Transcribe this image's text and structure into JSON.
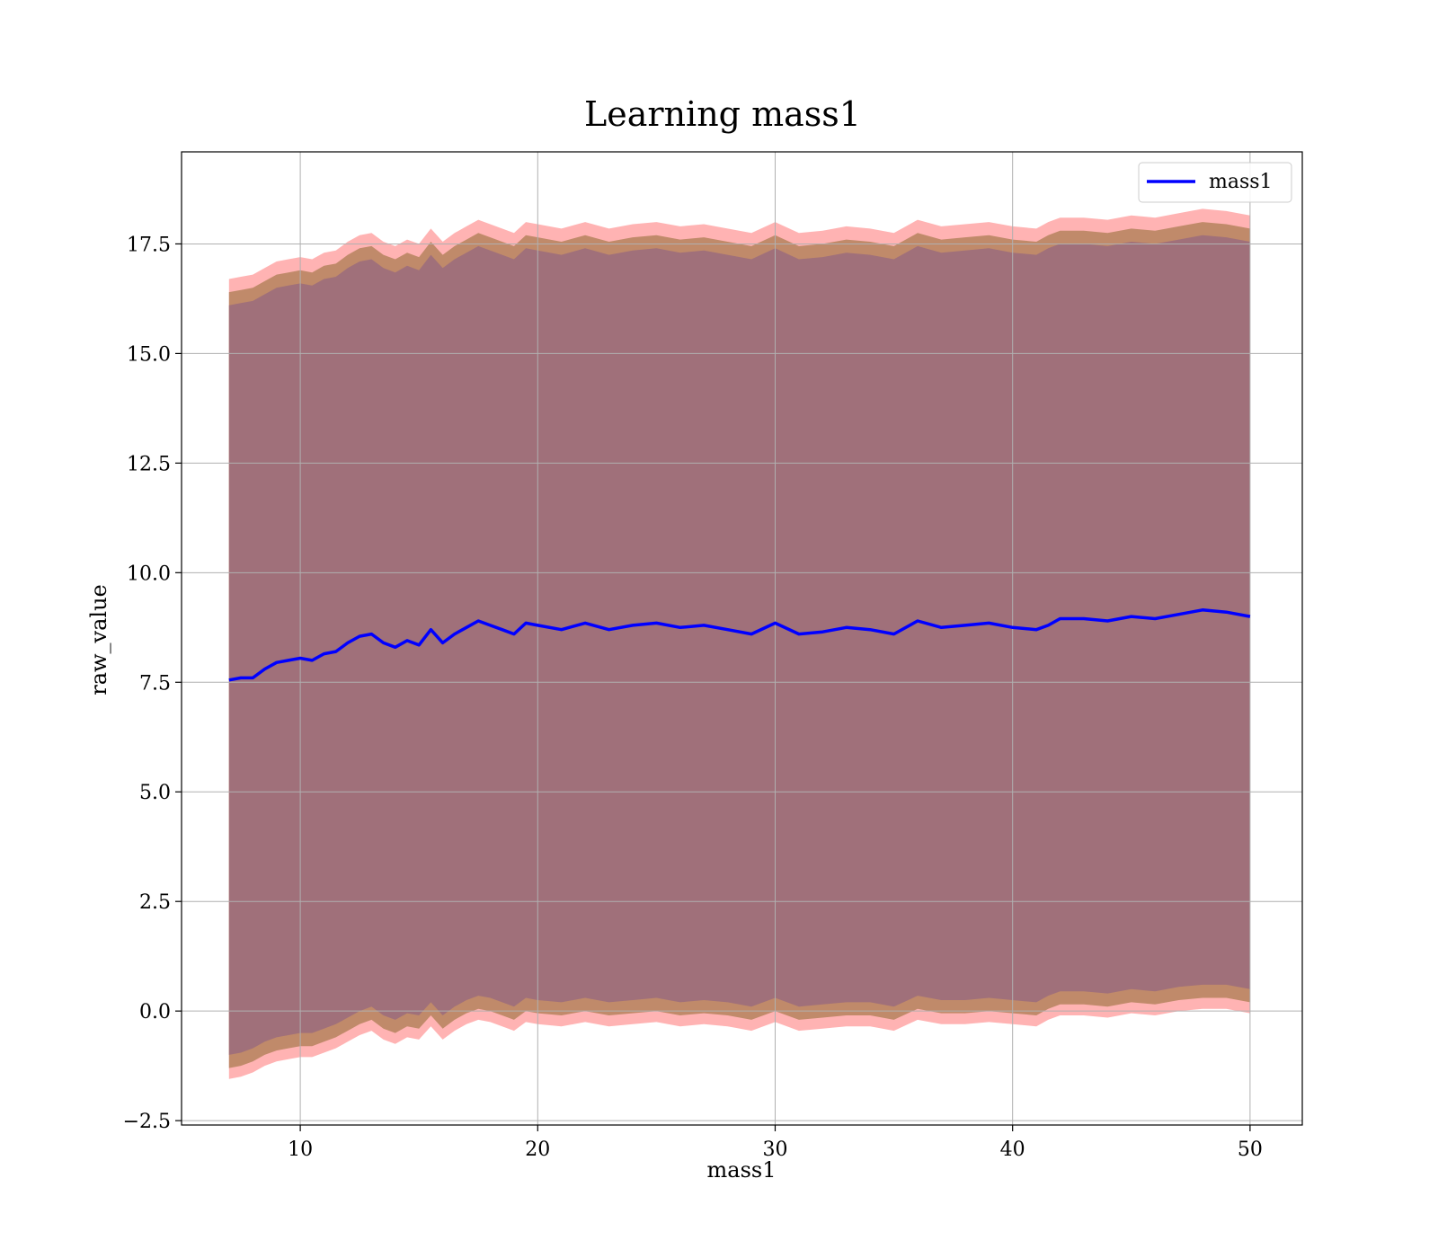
{
  "chart_data": {
    "type": "line",
    "title": "Learning mass1",
    "xlabel": "mass1",
    "ylabel": "raw_value",
    "xlim": [
      5,
      52.2
    ],
    "ylim": [
      -2.6,
      19.6
    ],
    "x_ticks": [
      10,
      20,
      30,
      40,
      50
    ],
    "x_tick_labels": [
      "10",
      "20",
      "30",
      "40",
      "50"
    ],
    "y_ticks": [
      -2.5,
      0.0,
      2.5,
      5.0,
      7.5,
      10.0,
      12.5,
      15.0,
      17.5
    ],
    "y_tick_labels": [
      "−2.5",
      "0.0",
      "2.5",
      "5.0",
      "7.5",
      "10.0",
      "12.5",
      "15.0",
      "17.5"
    ],
    "grid": true,
    "legend_position": "top-right",
    "colors": {
      "line": "#0000ff",
      "band_outer": "#ff9a9a",
      "band_middle": "#c08a6a",
      "band_inner": "#a0707a",
      "grid": "#b0b0b0"
    },
    "series": [
      {
        "name": "mass1",
        "x": [
          7,
          7.5,
          8,
          8.5,
          9,
          9.5,
          10,
          10.5,
          11,
          11.5,
          12,
          12.5,
          13,
          13.5,
          14,
          14.5,
          15,
          15.5,
          16,
          16.5,
          17,
          17.5,
          18,
          18.5,
          19,
          19.5,
          20,
          21,
          22,
          23,
          24,
          25,
          26,
          27,
          28,
          29,
          30,
          31,
          32,
          33,
          34,
          35,
          36,
          37,
          38,
          39,
          40,
          41,
          41.5,
          42,
          43,
          44,
          45,
          46,
          47,
          48,
          49,
          50
        ],
        "values": [
          7.55,
          7.6,
          7.6,
          7.8,
          7.95,
          8.0,
          8.05,
          8.0,
          8.15,
          8.2,
          8.4,
          8.55,
          8.6,
          8.4,
          8.3,
          8.45,
          8.35,
          8.7,
          8.4,
          8.6,
          8.75,
          8.9,
          8.8,
          8.7,
          8.6,
          8.85,
          8.8,
          8.7,
          8.85,
          8.7,
          8.8,
          8.85,
          8.75,
          8.8,
          8.7,
          8.6,
          8.85,
          8.6,
          8.65,
          8.75,
          8.7,
          8.6,
          8.9,
          8.75,
          8.8,
          8.85,
          8.75,
          8.7,
          8.8,
          8.95,
          8.95,
          8.9,
          9.0,
          8.95,
          9.05,
          9.15,
          9.1,
          9.0
        ],
        "band_inner_lower": [
          -1.0,
          -0.95,
          -0.85,
          -0.7,
          -0.6,
          -0.55,
          -0.5,
          -0.5,
          -0.4,
          -0.3,
          -0.15,
          0.0,
          0.1,
          -0.1,
          -0.2,
          -0.05,
          -0.1,
          0.2,
          -0.1,
          0.1,
          0.25,
          0.35,
          0.3,
          0.2,
          0.1,
          0.3,
          0.25,
          0.2,
          0.3,
          0.2,
          0.25,
          0.3,
          0.2,
          0.25,
          0.2,
          0.1,
          0.3,
          0.1,
          0.15,
          0.2,
          0.2,
          0.1,
          0.35,
          0.25,
          0.25,
          0.3,
          0.25,
          0.2,
          0.35,
          0.45,
          0.45,
          0.4,
          0.5,
          0.45,
          0.55,
          0.6,
          0.6,
          0.5
        ],
        "band_inner_upper": [
          16.1,
          16.15,
          16.2,
          16.35,
          16.5,
          16.55,
          16.6,
          16.55,
          16.7,
          16.75,
          16.95,
          17.1,
          17.15,
          16.95,
          16.85,
          17.0,
          16.9,
          17.25,
          16.95,
          17.15,
          17.3,
          17.45,
          17.35,
          17.25,
          17.15,
          17.4,
          17.35,
          17.25,
          17.4,
          17.25,
          17.35,
          17.4,
          17.3,
          17.35,
          17.25,
          17.15,
          17.4,
          17.15,
          17.2,
          17.3,
          17.25,
          17.15,
          17.45,
          17.3,
          17.35,
          17.4,
          17.3,
          17.25,
          17.4,
          17.5,
          17.5,
          17.45,
          17.55,
          17.5,
          17.6,
          17.7,
          17.65,
          17.55
        ],
        "band_middle_lower": [
          -1.3,
          -1.25,
          -1.15,
          -1.0,
          -0.9,
          -0.85,
          -0.8,
          -0.8,
          -0.7,
          -0.6,
          -0.45,
          -0.3,
          -0.2,
          -0.4,
          -0.5,
          -0.35,
          -0.4,
          -0.1,
          -0.4,
          -0.2,
          -0.05,
          0.05,
          0.0,
          -0.1,
          -0.2,
          0.0,
          -0.05,
          -0.1,
          0.0,
          -0.1,
          -0.05,
          0.0,
          -0.1,
          -0.05,
          -0.1,
          -0.2,
          0.0,
          -0.2,
          -0.15,
          -0.1,
          -0.1,
          -0.2,
          0.05,
          -0.05,
          -0.05,
          0.0,
          -0.05,
          -0.1,
          0.05,
          0.15,
          0.15,
          0.1,
          0.2,
          0.15,
          0.25,
          0.3,
          0.3,
          0.2
        ],
        "band_middle_upper": [
          16.4,
          16.45,
          16.5,
          16.65,
          16.8,
          16.85,
          16.9,
          16.85,
          17.0,
          17.05,
          17.25,
          17.4,
          17.45,
          17.25,
          17.15,
          17.3,
          17.2,
          17.55,
          17.25,
          17.45,
          17.6,
          17.75,
          17.65,
          17.55,
          17.45,
          17.7,
          17.65,
          17.55,
          17.7,
          17.55,
          17.65,
          17.7,
          17.6,
          17.65,
          17.55,
          17.45,
          17.7,
          17.45,
          17.5,
          17.6,
          17.55,
          17.45,
          17.75,
          17.6,
          17.65,
          17.7,
          17.6,
          17.55,
          17.7,
          17.8,
          17.8,
          17.75,
          17.85,
          17.8,
          17.9,
          18.0,
          17.95,
          17.85
        ],
        "band_outer_lower": [
          -1.55,
          -1.5,
          -1.4,
          -1.25,
          -1.15,
          -1.1,
          -1.05,
          -1.05,
          -0.95,
          -0.85,
          -0.7,
          -0.55,
          -0.45,
          -0.65,
          -0.75,
          -0.6,
          -0.65,
          -0.35,
          -0.65,
          -0.45,
          -0.3,
          -0.2,
          -0.25,
          -0.35,
          -0.45,
          -0.25,
          -0.3,
          -0.35,
          -0.25,
          -0.35,
          -0.3,
          -0.25,
          -0.35,
          -0.3,
          -0.35,
          -0.45,
          -0.25,
          -0.45,
          -0.4,
          -0.35,
          -0.35,
          -0.45,
          -0.2,
          -0.3,
          -0.3,
          -0.25,
          -0.3,
          -0.35,
          -0.2,
          -0.1,
          -0.1,
          -0.15,
          -0.05,
          -0.1,
          0.0,
          0.05,
          0.05,
          -0.05
        ],
        "band_outer_upper": [
          16.7,
          16.75,
          16.8,
          16.95,
          17.1,
          17.15,
          17.2,
          17.15,
          17.3,
          17.35,
          17.55,
          17.7,
          17.75,
          17.55,
          17.45,
          17.6,
          17.5,
          17.85,
          17.55,
          17.75,
          17.9,
          18.05,
          17.95,
          17.85,
          17.75,
          18.0,
          17.95,
          17.85,
          18.0,
          17.85,
          17.95,
          18.0,
          17.9,
          17.95,
          17.85,
          17.75,
          18.0,
          17.75,
          17.8,
          17.9,
          17.85,
          17.75,
          18.05,
          17.9,
          17.95,
          18.0,
          17.9,
          17.85,
          18.0,
          18.1,
          18.1,
          18.05,
          18.15,
          18.1,
          18.2,
          18.3,
          18.25,
          18.15
        ]
      }
    ]
  }
}
